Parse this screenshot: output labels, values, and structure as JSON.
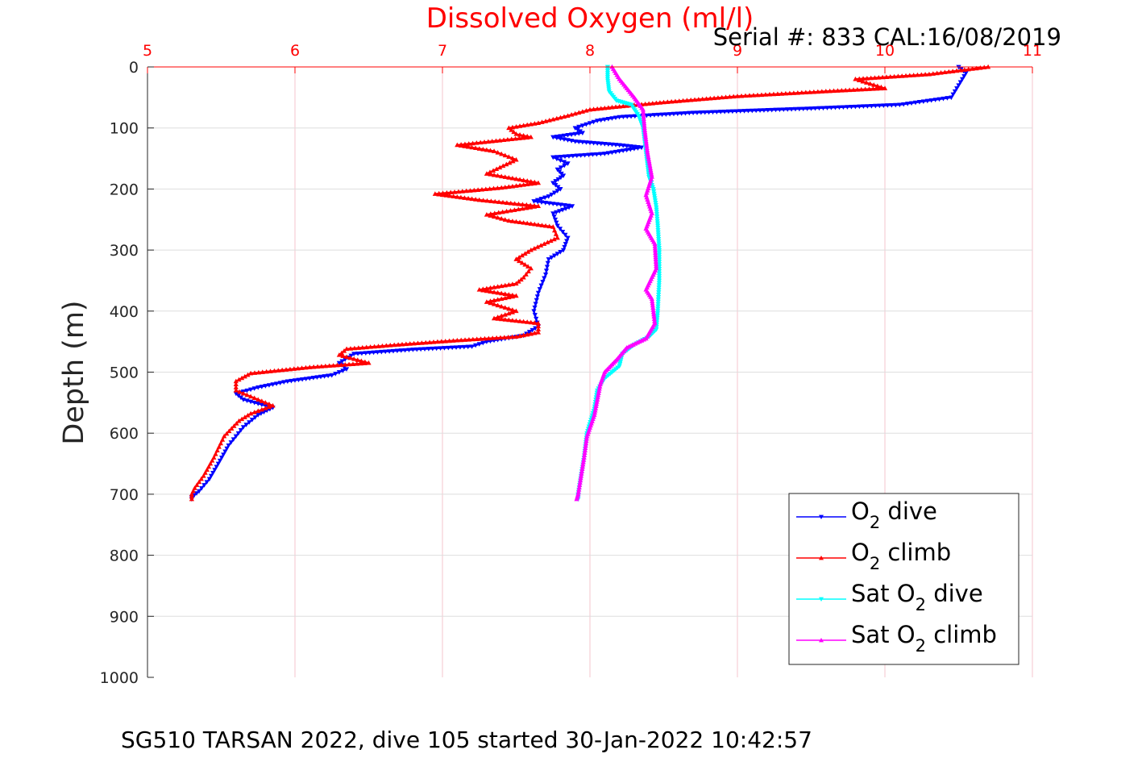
{
  "chart_data": {
    "type": "line",
    "title": "Dissolved Oxygen (ml/l)",
    "subtitle": "Serial #: 833  CAL:16/08/2019",
    "caption": "SG510 TARSAN 2022, dive 105 started 30-Jan-2022 10:42:57",
    "ylabel": "Depth (m)",
    "xlim": [
      5,
      11
    ],
    "ylim": [
      0,
      1000
    ],
    "y_reversed": true,
    "x_axis_position": "top",
    "xticks": [
      "5",
      "6",
      "7",
      "8",
      "9",
      "10",
      "11"
    ],
    "yticks": [
      "0",
      "100",
      "200",
      "300",
      "400",
      "500",
      "600",
      "700",
      "800",
      "900",
      "1000"
    ],
    "grid": true,
    "legend_position": "bottom-right",
    "series": [
      {
        "name": "O2 dive",
        "legend_main": "O",
        "legend_sub": "2",
        "legend_rest": " dive",
        "color": "#0000ff",
        "marker": "triangle-down",
        "points": [
          [
            10.5,
            0
          ],
          [
            10.55,
            10
          ],
          [
            10.5,
            30
          ],
          [
            10.45,
            50
          ],
          [
            10.1,
            62
          ],
          [
            9.5,
            68
          ],
          [
            8.7,
            75
          ],
          [
            8.2,
            82
          ],
          [
            8.05,
            88
          ],
          [
            7.9,
            100
          ],
          [
            7.95,
            108
          ],
          [
            7.75,
            115
          ],
          [
            7.9,
            122
          ],
          [
            8.2,
            128
          ],
          [
            8.35,
            132
          ],
          [
            8.1,
            142
          ],
          [
            7.75,
            148
          ],
          [
            7.85,
            158
          ],
          [
            7.78,
            168
          ],
          [
            7.82,
            178
          ],
          [
            7.75,
            190
          ],
          [
            7.8,
            200
          ],
          [
            7.72,
            212
          ],
          [
            7.62,
            220
          ],
          [
            7.88,
            228
          ],
          [
            7.75,
            240
          ],
          [
            7.78,
            260
          ],
          [
            7.85,
            280
          ],
          [
            7.82,
            300
          ],
          [
            7.72,
            315
          ],
          [
            7.7,
            340
          ],
          [
            7.65,
            370
          ],
          [
            7.62,
            400
          ],
          [
            7.65,
            425
          ],
          [
            7.55,
            440
          ],
          [
            7.3,
            450
          ],
          [
            7.2,
            458
          ],
          [
            6.8,
            463
          ],
          [
            6.4,
            470
          ],
          [
            6.3,
            485
          ],
          [
            6.35,
            495
          ],
          [
            6.25,
            505
          ],
          [
            5.95,
            515
          ],
          [
            5.75,
            525
          ],
          [
            5.6,
            535
          ],
          [
            5.65,
            545
          ],
          [
            5.85,
            558
          ],
          [
            5.75,
            570
          ],
          [
            5.65,
            590
          ],
          [
            5.55,
            620
          ],
          [
            5.48,
            650
          ],
          [
            5.42,
            675
          ],
          [
            5.35,
            695
          ],
          [
            5.3,
            705
          ],
          [
            5.3,
            708
          ]
        ]
      },
      {
        "name": "O2 climb",
        "legend_main": "O",
        "legend_sub": "2",
        "legend_rest": " climb",
        "color": "#ff0000",
        "marker": "triangle-up",
        "points": [
          [
            10.7,
            0
          ],
          [
            10.3,
            12
          ],
          [
            9.8,
            20
          ],
          [
            9.85,
            24
          ],
          [
            10.0,
            35
          ],
          [
            9.6,
            40
          ],
          [
            9.0,
            48
          ],
          [
            8.5,
            58
          ],
          [
            8.2,
            65
          ],
          [
            8.0,
            70
          ],
          [
            7.85,
            80
          ],
          [
            7.65,
            92
          ],
          [
            7.45,
            100
          ],
          [
            7.5,
            110
          ],
          [
            7.6,
            115
          ],
          [
            7.1,
            128
          ],
          [
            7.35,
            138
          ],
          [
            7.5,
            152
          ],
          [
            7.3,
            175
          ],
          [
            7.65,
            190
          ],
          [
            7.4,
            198
          ],
          [
            6.95,
            208
          ],
          [
            7.25,
            218
          ],
          [
            7.65,
            228
          ],
          [
            7.3,
            242
          ],
          [
            7.45,
            252
          ],
          [
            7.75,
            262
          ],
          [
            7.78,
            280
          ],
          [
            7.6,
            300
          ],
          [
            7.5,
            315
          ],
          [
            7.6,
            330
          ],
          [
            7.55,
            345
          ],
          [
            7.5,
            355
          ],
          [
            7.25,
            365
          ],
          [
            7.5,
            375
          ],
          [
            7.3,
            385
          ],
          [
            7.5,
            400
          ],
          [
            7.35,
            412
          ],
          [
            7.65,
            420
          ],
          [
            7.65,
            435
          ],
          [
            7.5,
            442
          ],
          [
            7.1,
            448
          ],
          [
            6.7,
            455
          ],
          [
            6.35,
            462
          ],
          [
            6.3,
            472
          ],
          [
            6.5,
            485
          ],
          [
            6.1,
            492
          ],
          [
            5.7,
            502
          ],
          [
            5.6,
            515
          ],
          [
            5.6,
            530
          ],
          [
            5.7,
            540
          ],
          [
            5.85,
            555
          ],
          [
            5.7,
            568
          ],
          [
            5.62,
            580
          ],
          [
            5.52,
            605
          ],
          [
            5.45,
            640
          ],
          [
            5.38,
            670
          ],
          [
            5.32,
            690
          ],
          [
            5.3,
            700
          ],
          [
            5.3,
            708
          ]
        ]
      },
      {
        "name": "Sat O2 dive",
        "legend_main": "Sat O",
        "legend_sub": "2",
        "legend_rest": " dive",
        "color": "#00ffff",
        "marker": "triangle-down",
        "points": [
          [
            8.12,
            0
          ],
          [
            8.12,
            20
          ],
          [
            8.13,
            40
          ],
          [
            8.18,
            55
          ],
          [
            8.28,
            62
          ],
          [
            8.33,
            80
          ],
          [
            8.36,
            100
          ],
          [
            8.38,
            140
          ],
          [
            8.4,
            180
          ],
          [
            8.43,
            200
          ],
          [
            8.45,
            230
          ],
          [
            8.46,
            260
          ],
          [
            8.47,
            300
          ],
          [
            8.47,
            350
          ],
          [
            8.46,
            400
          ],
          [
            8.45,
            430
          ],
          [
            8.4,
            442
          ],
          [
            8.3,
            455
          ],
          [
            8.22,
            470
          ],
          [
            8.2,
            490
          ],
          [
            8.1,
            510
          ],
          [
            8.05,
            530
          ],
          [
            8.03,
            560
          ],
          [
            7.98,
            600
          ],
          [
            7.96,
            640
          ],
          [
            7.94,
            670
          ],
          [
            7.92,
            700
          ],
          [
            7.92,
            708
          ]
        ]
      },
      {
        "name": "Sat O2 climb",
        "legend_main": "Sat O",
        "legend_sub": "2",
        "legend_rest": " climb",
        "color": "#ff00ff",
        "marker": "triangle-up",
        "points": [
          [
            8.15,
            0
          ],
          [
            8.2,
            20
          ],
          [
            8.25,
            35
          ],
          [
            8.3,
            50
          ],
          [
            8.36,
            70
          ],
          [
            8.37,
            100
          ],
          [
            8.39,
            140
          ],
          [
            8.42,
            180
          ],
          [
            8.38,
            210
          ],
          [
            8.42,
            240
          ],
          [
            8.38,
            265
          ],
          [
            8.44,
            290
          ],
          [
            8.45,
            330
          ],
          [
            8.38,
            365
          ],
          [
            8.42,
            380
          ],
          [
            8.44,
            420
          ],
          [
            8.38,
            445
          ],
          [
            8.25,
            460
          ],
          [
            8.18,
            480
          ],
          [
            8.1,
            500
          ],
          [
            8.07,
            520
          ],
          [
            8.05,
            545
          ],
          [
            8.03,
            570
          ],
          [
            7.98,
            605
          ],
          [
            7.96,
            640
          ],
          [
            7.94,
            670
          ],
          [
            7.92,
            700
          ],
          [
            7.91,
            708
          ]
        ]
      }
    ]
  }
}
